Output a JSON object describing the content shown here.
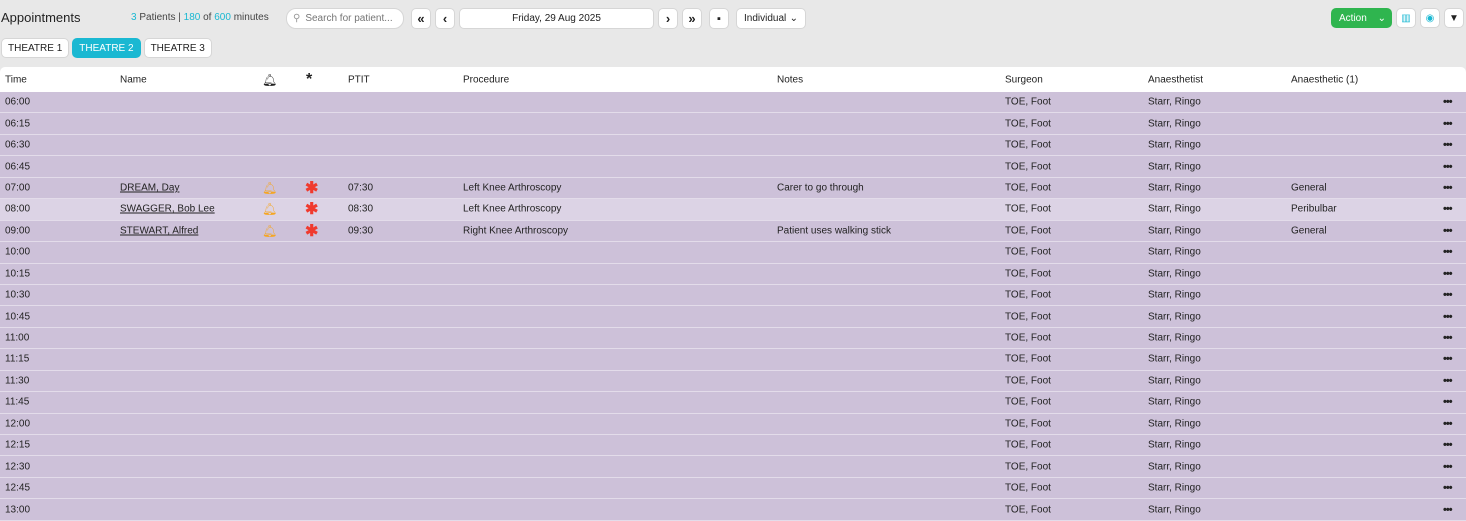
{
  "header": {
    "title": "Appointments",
    "patients_count": "3",
    "patients_label": " Patients | ",
    "minutes_used": "180",
    "of_label": " of ",
    "minutes_total": "600",
    "minutes_label": " minutes",
    "search_placeholder": "Search for patient...",
    "date": "Friday, 29 Aug 2025",
    "view_mode": "Individual",
    "action_label": "Action"
  },
  "tabs": [
    {
      "label": "THEATRE 1",
      "active": false
    },
    {
      "label": "THEATRE 2",
      "active": true
    },
    {
      "label": "THEATRE 3",
      "active": false
    }
  ],
  "colors": {
    "accent": "#1ab8d2",
    "action": "#2fb54f",
    "bell": "#f5a623",
    "alert": "#f03a2e",
    "row": "#cdc1d9"
  },
  "columns": {
    "time": "Time",
    "name": "Name",
    "ptit": "PTIT",
    "procedure": "Procedure",
    "notes": "Notes",
    "surgeon": "Surgeon",
    "anaesthetist": "Anaesthetist",
    "anaesthetic": "Anaesthetic (1)"
  },
  "rows": [
    {
      "time": "06:00",
      "surgeon": "TOE, Foot",
      "anaesthetist": "Starr, Ringo"
    },
    {
      "time": "06:15",
      "surgeon": "TOE, Foot",
      "anaesthetist": "Starr, Ringo"
    },
    {
      "time": "06:30",
      "surgeon": "TOE, Foot",
      "anaesthetist": "Starr, Ringo"
    },
    {
      "time": "06:45",
      "surgeon": "TOE, Foot",
      "anaesthetist": "Starr, Ringo"
    },
    {
      "time": "07:00",
      "name": "DREAM, Day",
      "ptit": "07:30",
      "procedure": "Left Knee Arthroscopy",
      "notes": "Carer to go through",
      "surgeon": "TOE, Foot",
      "anaesthetist": "Starr, Ringo",
      "anaesthetic": "General"
    },
    {
      "time": "08:00",
      "name": "SWAGGER, Bob Lee",
      "ptit": "08:30",
      "procedure": "Left Knee Arthroscopy",
      "notes": "",
      "surgeon": "TOE, Foot",
      "anaesthetist": "Starr, Ringo",
      "anaesthetic": "Peribulbar",
      "highlight": true
    },
    {
      "time": "09:00",
      "name": "STEWART, Alfred",
      "ptit": "09:30",
      "procedure": "Right Knee Arthroscopy",
      "notes": "Patient uses walking stick",
      "surgeon": "TOE, Foot",
      "anaesthetist": "Starr, Ringo",
      "anaesthetic": "General"
    },
    {
      "time": "10:00",
      "surgeon": "TOE, Foot",
      "anaesthetist": "Starr, Ringo"
    },
    {
      "time": "10:15",
      "surgeon": "TOE, Foot",
      "anaesthetist": "Starr, Ringo"
    },
    {
      "time": "10:30",
      "surgeon": "TOE, Foot",
      "anaesthetist": "Starr, Ringo"
    },
    {
      "time": "10:45",
      "surgeon": "TOE, Foot",
      "anaesthetist": "Starr, Ringo"
    },
    {
      "time": "11:00",
      "surgeon": "TOE, Foot",
      "anaesthetist": "Starr, Ringo"
    },
    {
      "time": "11:15",
      "surgeon": "TOE, Foot",
      "anaesthetist": "Starr, Ringo"
    },
    {
      "time": "11:30",
      "surgeon": "TOE, Foot",
      "anaesthetist": "Starr, Ringo"
    },
    {
      "time": "11:45",
      "surgeon": "TOE, Foot",
      "anaesthetist": "Starr, Ringo"
    },
    {
      "time": "12:00",
      "surgeon": "TOE, Foot",
      "anaesthetist": "Starr, Ringo"
    },
    {
      "time": "12:15",
      "surgeon": "TOE, Foot",
      "anaesthetist": "Starr, Ringo"
    },
    {
      "time": "12:30",
      "surgeon": "TOE, Foot",
      "anaesthetist": "Starr, Ringo"
    },
    {
      "time": "12:45",
      "surgeon": "TOE, Foot",
      "anaesthetist": "Starr, Ringo"
    },
    {
      "time": "13:00",
      "surgeon": "TOE, Foot",
      "anaesthetist": "Starr, Ringo"
    }
  ]
}
